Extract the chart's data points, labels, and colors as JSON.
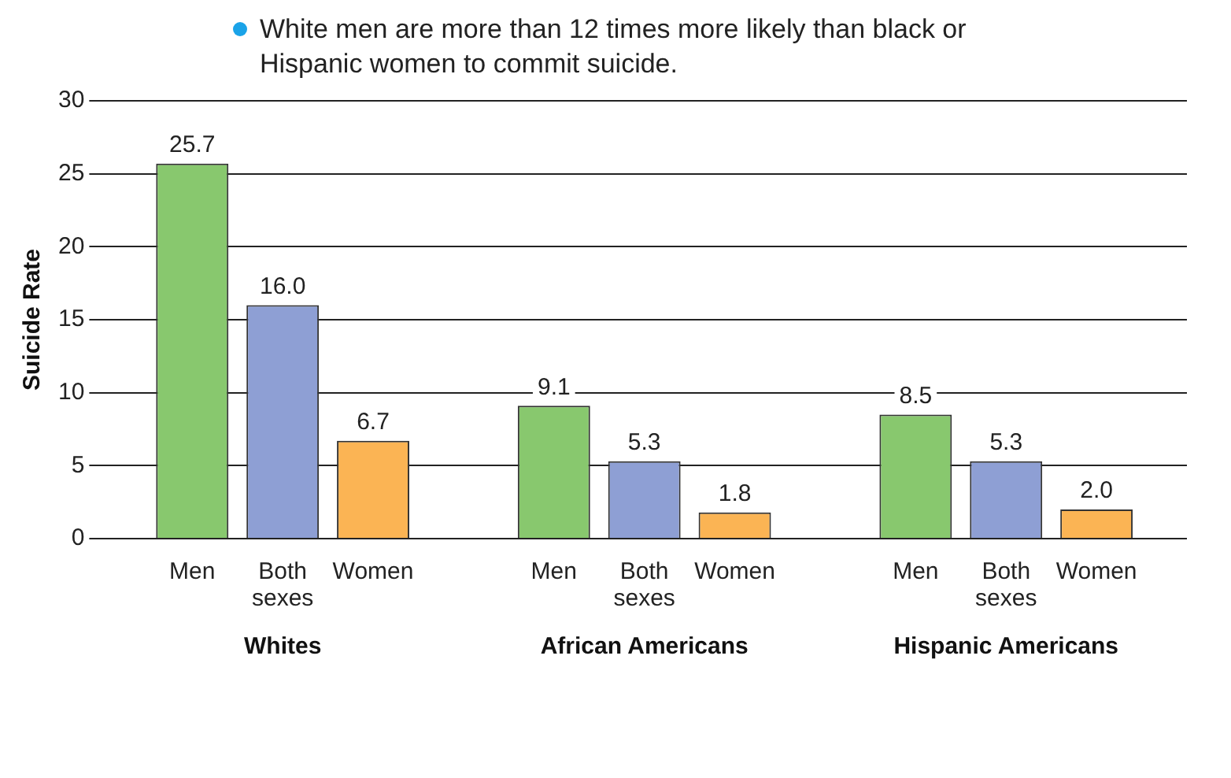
{
  "chart_data": {
    "type": "bar",
    "annotations": [
      "White men are more than 12 times more likely than black or Hispanic women to commit suicide."
    ],
    "ylabel": "Suicide Rate",
    "categories": [
      "Whites",
      "African Americans",
      "Hispanic Americans"
    ],
    "series": [
      {
        "name": "Men",
        "color": "#88c86e",
        "values": [
          25.7,
          9.1,
          8.5
        ],
        "value_labels": [
          "25.7",
          "9.1",
          "8.5"
        ]
      },
      {
        "name": "Both sexes",
        "color": "#8e9fd4",
        "values": [
          16.0,
          5.3,
          5.3
        ],
        "value_labels": [
          "16.0",
          "5.3",
          "5.3"
        ]
      },
      {
        "name": "Women",
        "color": "#fbb454",
        "values": [
          6.7,
          1.8,
          2.0
        ],
        "value_labels": [
          "6.7",
          "1.8",
          "2.0"
        ]
      }
    ],
    "ylim": [
      0,
      30
    ],
    "yticks": [
      0,
      5,
      10,
      15,
      20,
      25,
      30
    ],
    "grid": "y",
    "legend": false
  }
}
